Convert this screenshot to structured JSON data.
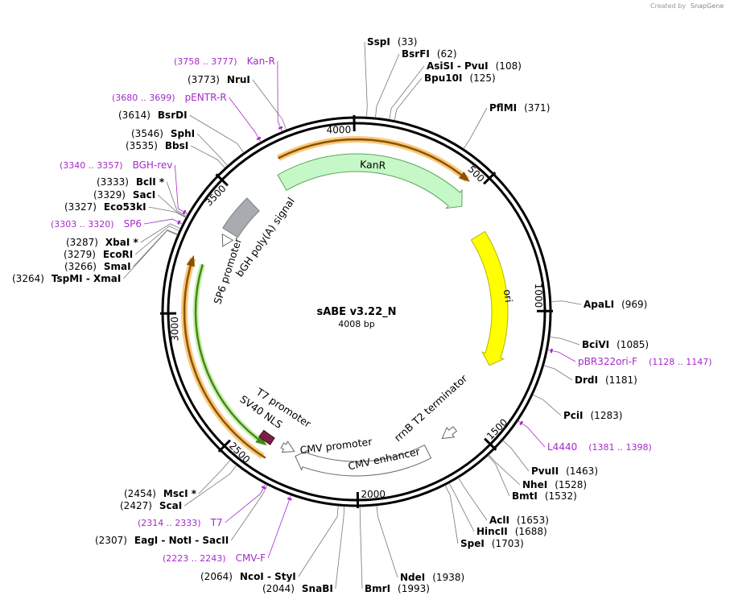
{
  "header": {
    "credit": "Created by",
    "brand": "SnapGene"
  },
  "plasmid": {
    "name": "sABE v3.22_N",
    "length": "4008 bp"
  },
  "ticks": [
    500,
    1000,
    1500,
    2000,
    2500,
    3000,
    3500,
    4000
  ],
  "features": [
    {
      "label": "KanR"
    },
    {
      "label": "ori"
    },
    {
      "label": "bGH poly(A) signal"
    },
    {
      "label": "SP6 promoter"
    },
    {
      "label": "SV40 NLS"
    },
    {
      "label": "T7 promoter"
    },
    {
      "label": "CMV promoter"
    },
    {
      "label": "CMV enhancer"
    },
    {
      "label": "rrnB T2 terminator"
    }
  ],
  "sites": [
    {
      "name": "SspI",
      "position": "(33)"
    },
    {
      "name": "BsrFI",
      "position": "(62)"
    },
    {
      "name": "AsiSI  -  PvuI",
      "position": "(108)"
    },
    {
      "name": "Bpu10I",
      "position": "(125)"
    },
    {
      "name": "PflMI",
      "position": "(371)"
    },
    {
      "name": "ApaLI",
      "position": "(969)"
    },
    {
      "name": "BciVI",
      "position": "(1085)"
    },
    {
      "name": "DrdI",
      "position": "(1181)"
    },
    {
      "name": "PciI",
      "position": "(1283)"
    },
    {
      "name": "PvuII",
      "position": "(1463)"
    },
    {
      "name": "NheI",
      "position": "(1528)"
    },
    {
      "name": "BmtI",
      "position": "(1532)"
    },
    {
      "name": "AclI",
      "position": "(1653)"
    },
    {
      "name": "HincII",
      "position": "(1688)"
    },
    {
      "name": "SpeI",
      "position": "(1703)"
    },
    {
      "name": "NdeI",
      "position": "(1938)"
    },
    {
      "name": "BmrI",
      "position": "(1993)"
    },
    {
      "name": "SnaBI",
      "position": "(2044)"
    },
    {
      "name": "NcoI  -  StyI",
      "position": "(2064)"
    },
    {
      "name": "EagI  -  NotI  -  SacII",
      "position": "(2307)"
    },
    {
      "name": "ScaI",
      "position": "(2427)"
    },
    {
      "name": "MscI *",
      "position": "(2454)"
    },
    {
      "name": "TspMI  -  XmaI",
      "position": "(3264)"
    },
    {
      "name": "SmaI",
      "position": "(3266)"
    },
    {
      "name": "EcoRI",
      "position": "(3279)"
    },
    {
      "name": "XbaI *",
      "position": "(3287)"
    },
    {
      "name": "Eco53kI",
      "position": "(3327)"
    },
    {
      "name": "SacI",
      "position": "(3329)"
    },
    {
      "name": "BclI *",
      "position": "(3333)"
    },
    {
      "name": "BbsI",
      "position": "(3535)"
    },
    {
      "name": "SphI",
      "position": "(3546)"
    },
    {
      "name": "BsrDI",
      "position": "(3614)"
    },
    {
      "name": "NruI",
      "position": "(3773)"
    }
  ],
  "primers": [
    {
      "name": "Kan-R",
      "range": "(3758 .. 3777)"
    },
    {
      "name": "pENTR-R",
      "range": "(3680 .. 3699)"
    },
    {
      "name": "BGH-rev",
      "range": "(3340 .. 3357)"
    },
    {
      "name": "SP6",
      "range": "(3303 .. 3320)"
    },
    {
      "name": "pBR322ori-F",
      "range": "(1128 .. 1147)"
    },
    {
      "name": "L4440",
      "range": "(1381 .. 1398)"
    },
    {
      "name": "T7",
      "range": "(2314 .. 2333)"
    },
    {
      "name": "CMV-F",
      "range": "(2223 .. 2243)"
    }
  ]
}
